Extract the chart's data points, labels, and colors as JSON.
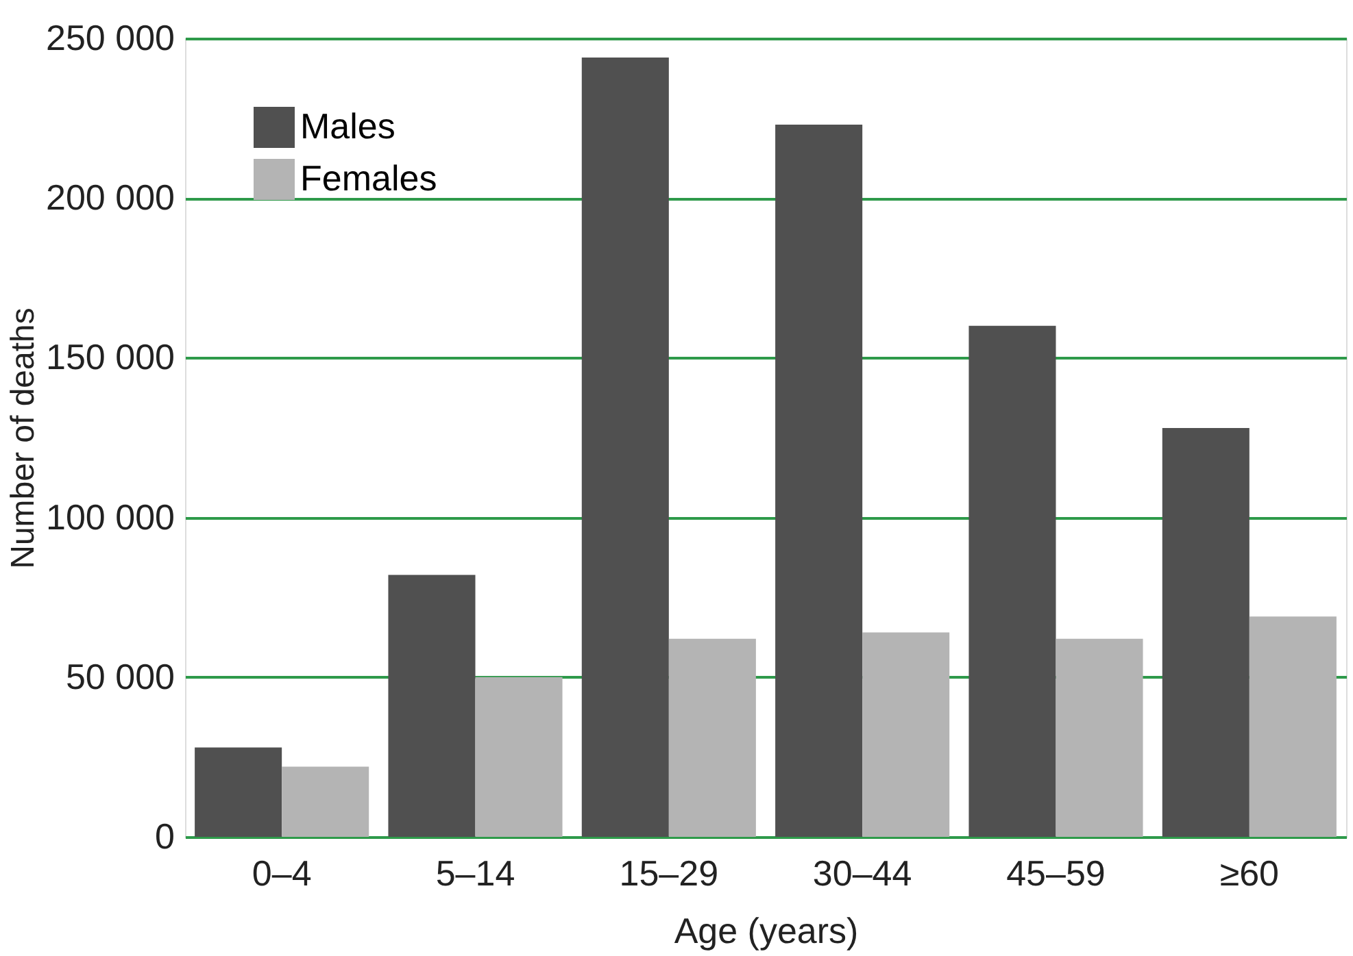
{
  "chart_data": {
    "type": "bar",
    "xlabel": "Age (years)",
    "ylabel": "Number of deaths",
    "categories": [
      "0–4",
      "5–14",
      "15–29",
      "30–44",
      "45–59",
      "≥60"
    ],
    "series": [
      {
        "name": "Males",
        "color": "#505050",
        "values": [
          28000,
          82000,
          244000,
          223000,
          160000,
          128000
        ]
      },
      {
        "name": "Females",
        "color": "#b4b4b4",
        "values": [
          22000,
          50000,
          62000,
          64000,
          62000,
          69000
        ]
      }
    ],
    "ylim": [
      0,
      250000
    ],
    "yticks": [
      0,
      {
        "value": 50000,
        "label": "50 000"
      },
      {
        "value": 100000,
        "label": "100 000"
      },
      {
        "value": 150000,
        "label": "150 000"
      },
      {
        "value": 200000,
        "label": "200 000"
      },
      {
        "value": 250000,
        "label": "250 000"
      }
    ],
    "grid": "y",
    "legend": "top left"
  }
}
